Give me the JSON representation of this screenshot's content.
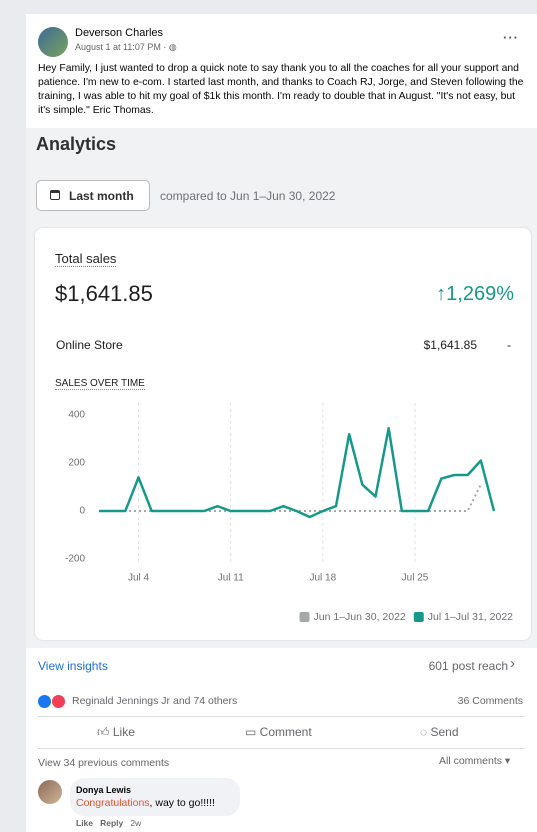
{
  "post": {
    "author": "Deverson Charles",
    "time": "August 1 at 11:07 PM ·",
    "text": "Hey Family, I just wanted to drop a quick note to say thank you to all the coaches for all your support and patience. I'm new to e-com. I started last month, and thanks to Coach RJ, Jorge, and Steven following the training, I was able to hit my goal of $1k this month. I'm ready to double that in August. \"It's not easy, but it's simple.\" Eric Thomas."
  },
  "analytics": {
    "title": "Analytics",
    "period_button": "Last month",
    "comparison": "compared to Jun 1–Jun 30, 2022",
    "total_sales_label": "Total sales",
    "total_sales": "$1,641.85",
    "change": "↑1,269%",
    "channel": "Online Store",
    "channel_value": "$1,641.85",
    "channel_change": "-"
  },
  "chart_data": {
    "type": "line",
    "title": "SALES OVER TIME",
    "categories": [
      null,
      null,
      null,
      "Jul 4",
      null,
      null,
      null,
      null,
      null,
      null,
      "Jul 11",
      null,
      null,
      null,
      null,
      null,
      null,
      "Jul 18",
      null,
      null,
      null,
      null,
      null,
      null,
      "Jul 25",
      null,
      null,
      null,
      null,
      null,
      null
    ],
    "series": [
      {
        "name": "Jun 1–Jun 30, 2022",
        "color": "#a3a8a8",
        "values": [
          0,
          0,
          0,
          0,
          0,
          0,
          0,
          0,
          0,
          0,
          0,
          0,
          0,
          0,
          0,
          0,
          0,
          0,
          0,
          0,
          0,
          0,
          0,
          0,
          0,
          0,
          0,
          0,
          0,
          110,
          null
        ]
      },
      {
        "name": "Jul 1–Jul 31, 2022",
        "color": "#16998a",
        "values": [
          0,
          0,
          0,
          140,
          0,
          0,
          0,
          0,
          0,
          20,
          0,
          0,
          0,
          0,
          20,
          0,
          -25,
          0,
          20,
          320,
          110,
          60,
          345,
          0,
          0,
          0,
          135,
          150,
          150,
          210,
          0
        ]
      }
    ],
    "ylim": [
      -200,
      400
    ],
    "yticks": [
      -200,
      0,
      200,
      400
    ],
    "grid": true,
    "legend": "bottom-right"
  },
  "footer": {
    "view_insights": "View insights",
    "post_reach": "601 post reach",
    "reactions_text": "Reginald Jennings Jr and 74 others",
    "comments_count": "36 Comments",
    "actions": [
      "Like",
      "Comment",
      "Send"
    ],
    "previous_comments": "View 34 previous comments",
    "all_comments": "All comments"
  },
  "comment": {
    "author": "Donya Lewis",
    "highlight": "Congratulations",
    "text": ", way to go!!!!!",
    "actions": [
      "Like",
      "Reply"
    ],
    "time": "2w"
  }
}
